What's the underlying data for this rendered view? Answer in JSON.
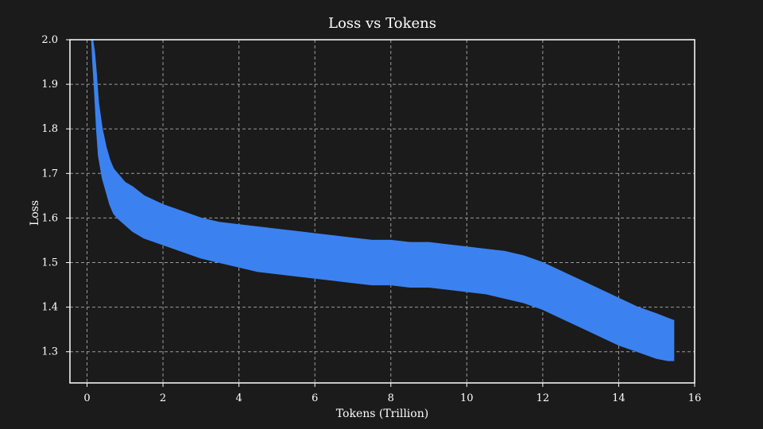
{
  "chart_data": {
    "type": "line",
    "title": "Loss vs Tokens",
    "xlabel": "Tokens (Trillion)",
    "ylabel": "Loss",
    "xlim": [
      -0.45,
      16
    ],
    "ylim": [
      1.23,
      2.0
    ],
    "x_ticks": [
      0,
      2,
      4,
      6,
      8,
      10,
      12,
      14,
      16
    ],
    "y_ticks": [
      1.3,
      1.4,
      1.5,
      1.6,
      1.7,
      1.8,
      1.9,
      2.0
    ],
    "x_tick_labels": [
      "0",
      "2",
      "4",
      "6",
      "8",
      "10",
      "12",
      "14",
      "16"
    ],
    "y_tick_labels": [
      "1.3",
      "1.4",
      "1.5",
      "1.6",
      "1.7",
      "1.8",
      "1.9",
      "2.0"
    ],
    "grid": true,
    "legend": "none",
    "colors": {
      "background": "#1b1b1b",
      "axes": "#ffffff",
      "grid": "#9a9a9a",
      "line": "#3b82f0"
    },
    "series": [
      {
        "x": [
          0.12,
          0.15,
          0.2,
          0.25,
          0.3,
          0.4,
          0.5,
          0.6,
          0.7,
          0.8,
          1.0,
          1.2,
          1.5,
          2.0,
          2.5,
          3.0,
          3.5,
          4.0,
          4.5,
          5.0,
          5.5,
          6.0,
          6.5,
          7.0,
          7.5,
          8.0,
          8.5,
          9.0,
          9.5,
          10.0,
          10.5,
          11.0,
          11.5,
          12.0,
          12.5,
          13.0,
          13.5,
          14.0,
          14.5,
          15.0,
          15.3,
          15.45
        ],
        "upper": [
          2.0,
          2.0,
          1.97,
          1.92,
          1.86,
          1.8,
          1.76,
          1.73,
          1.71,
          1.7,
          1.68,
          1.67,
          1.65,
          1.63,
          1.615,
          1.6,
          1.59,
          1.585,
          1.58,
          1.575,
          1.57,
          1.565,
          1.56,
          1.555,
          1.55,
          1.55,
          1.545,
          1.545,
          1.54,
          1.535,
          1.53,
          1.525,
          1.515,
          1.5,
          1.48,
          1.46,
          1.44,
          1.42,
          1.4,
          1.385,
          1.375,
          1.37
        ],
        "lower": [
          2.0,
          1.95,
          1.88,
          1.8,
          1.74,
          1.69,
          1.66,
          1.63,
          1.61,
          1.6,
          1.585,
          1.57,
          1.555,
          1.54,
          1.525,
          1.51,
          1.5,
          1.49,
          1.48,
          1.475,
          1.47,
          1.465,
          1.46,
          1.455,
          1.45,
          1.45,
          1.445,
          1.445,
          1.44,
          1.435,
          1.43,
          1.42,
          1.41,
          1.395,
          1.375,
          1.355,
          1.335,
          1.315,
          1.3,
          1.285,
          1.28,
          1.28
        ]
      }
    ]
  }
}
